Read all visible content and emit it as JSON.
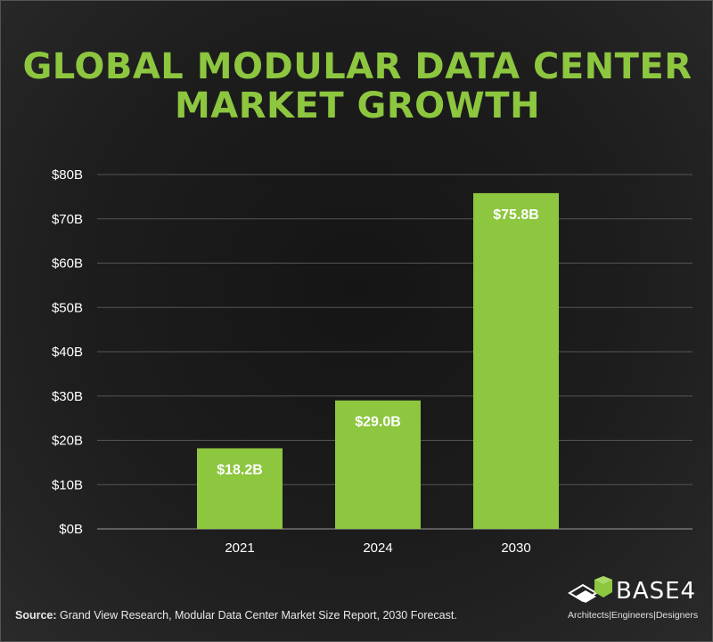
{
  "title": {
    "line1": "GLOBAL MODULAR DATA CENTER",
    "line2": "MARKET GROWTH"
  },
  "chart_data": {
    "type": "bar",
    "categories": [
      "2021",
      "2024",
      "2030"
    ],
    "values": [
      18.2,
      29.0,
      75.8
    ],
    "value_labels": [
      "$18.2B",
      "$29.0B",
      "$75.8B"
    ],
    "ylim": [
      0,
      80
    ],
    "yticks": [
      0,
      10,
      20,
      30,
      40,
      50,
      60,
      70,
      80
    ],
    "ytick_labels": [
      "$0B",
      "$10B",
      "$20B",
      "$30B",
      "$40B",
      "$50B",
      "$60B",
      "$70B",
      "$80B"
    ],
    "grid": true,
    "bar_color": "#8dc63f"
  },
  "source": {
    "label": "Source:",
    "text": " Grand View Research, Modular Data Center Market Size Report, 2030 Forecast."
  },
  "logo": {
    "word": "BASE4",
    "tagline": "Architects|Engineers|Designers"
  },
  "colors": {
    "accent": "#8dc63f",
    "background": "#1b1b1b",
    "text": "#ffffff"
  }
}
